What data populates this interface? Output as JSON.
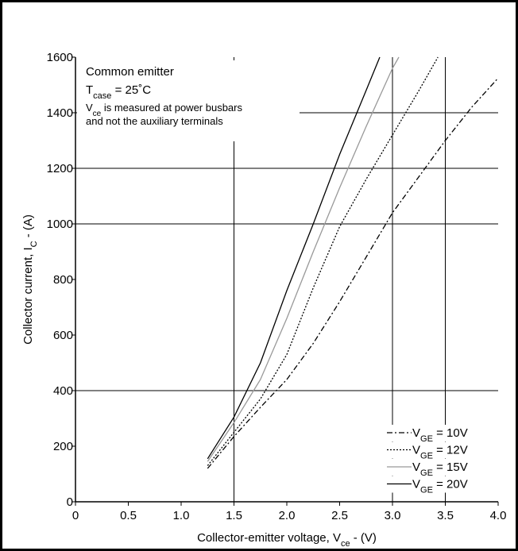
{
  "chart_data": {
    "type": "line",
    "xlabel": [
      "Collector-emitter voltage, V",
      "ce",
      " - (V)"
    ],
    "ylabel": [
      "Collector current, I",
      "C",
      " - (A)"
    ],
    "annotation": [
      [
        "Common emitter"
      ],
      [
        "T",
        "case",
        " = 25˚C"
      ],
      [
        "V",
        "ce",
        " is measured at power busbars"
      ],
      [
        "and not the auxiliary terminals"
      ]
    ],
    "xlim": [
      0,
      4.0
    ],
    "ylim": [
      0,
      1600
    ],
    "xticks": [
      0,
      0.5,
      {
        "value": 1,
        "label": "1.0"
      },
      1.5,
      {
        "value": 2,
        "label": "2.0"
      },
      2.5,
      {
        "value": 3,
        "label": "3.0"
      },
      3.5,
      {
        "value": 4,
        "label": "4.0"
      }
    ],
    "yticks": [
      0,
      200,
      400,
      600,
      800,
      1000,
      1200,
      1400,
      1600
    ],
    "hgrid": [
      400,
      1000,
      1200,
      1400
    ],
    "vgrid": [
      1.5,
      3.0,
      3.5
    ],
    "legend": "lower right",
    "series": [
      {
        "name": [
          "V",
          "GE",
          " = 10V"
        ],
        "color": "#000000",
        "style": "dashdot",
        "x": [
          1.25,
          1.5,
          1.75,
          2.0,
          2.25,
          2.5,
          2.75,
          3.0,
          3.25,
          3.5,
          3.75,
          4.0
        ],
        "values": [
          120,
          235,
          340,
          440,
          570,
          720,
          880,
          1040,
          1170,
          1300,
          1420,
          1525
        ]
      },
      {
        "name": [
          "V",
          "GE",
          " = 12V"
        ],
        "color": "#000000",
        "style": "dotted",
        "x": [
          1.25,
          1.5,
          1.75,
          2.0,
          2.25,
          2.5,
          2.75,
          3.0,
          3.25,
          3.43
        ],
        "values": [
          130,
          250,
          370,
          530,
          770,
          990,
          1160,
          1320,
          1480,
          1600
        ]
      },
      {
        "name": [
          "V",
          "GE",
          " = 15V"
        ],
        "color": "#999999",
        "style": "solid",
        "x": [
          1.25,
          1.5,
          1.75,
          2.0,
          2.25,
          2.5,
          2.75,
          3.0,
          3.06
        ],
        "values": [
          145,
          285,
          440,
          660,
          900,
          1130,
          1350,
          1560,
          1600
        ]
      },
      {
        "name": [
          "V",
          "GE",
          " = 20V"
        ],
        "color": "#000000",
        "style": "solid",
        "x": [
          1.25,
          1.5,
          1.75,
          2.0,
          2.25,
          2.5,
          2.75,
          2.88
        ],
        "values": [
          155,
          305,
          500,
          760,
          1000,
          1250,
          1480,
          1600
        ]
      }
    ]
  }
}
